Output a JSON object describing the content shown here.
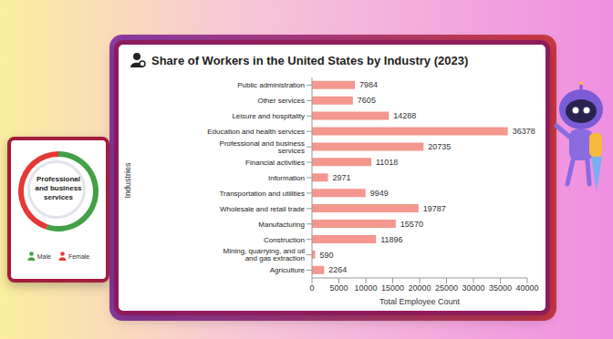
{
  "chart_data": [
    {
      "type": "bar",
      "title": "Share of Workers in the United States by Industry (2023)",
      "orientation": "horizontal",
      "categories": [
        "Public administration",
        "Other services",
        "Leisure and hospitality",
        "Education and health services",
        "Professional and business services",
        "Financial activities",
        "Information",
        "Transportation and utilities",
        "Wholesale and retail trade",
        "Manufacturing",
        "Construction",
        "Mining, quarrying, and oil and gas extraction",
        "Agriculture"
      ],
      "values": [
        7984,
        7605,
        14288,
        36378,
        20735,
        11018,
        2971,
        9949,
        19787,
        15570,
        11896,
        590,
        2264
      ],
      "color": "#f4978e",
      "xlabel": "Total Employee Count",
      "ylabel": "Industries",
      "xlim": [
        0,
        40000
      ],
      "xticks": [
        0,
        5000,
        10000,
        15000,
        20000,
        25000,
        30000,
        35000,
        40000
      ],
      "data_labels": true,
      "grid": false
    },
    {
      "type": "pie",
      "title": "Professional and business services",
      "categories": [
        "Male",
        "Female"
      ],
      "values": [
        55,
        45
      ],
      "colors": [
        "#43a047",
        "#e53935"
      ],
      "legend": "bottom"
    }
  ]
}
